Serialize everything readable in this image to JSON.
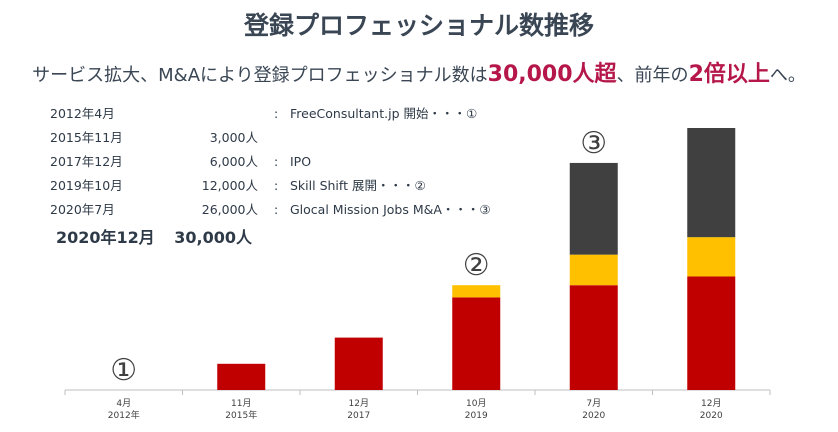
{
  "title": "登録プロフェッショナル数推移",
  "subtitle": {
    "part1": "サービス拡大、M&Aにより登録プロフェッショナル数は",
    "hl1": "30,000人超",
    "part2": "、前年の",
    "hl2": "2倍以上",
    "part3": "へ。"
  },
  "timeline": [
    {
      "date": "2012年4月",
      "count": "",
      "sep": ":",
      "desc": "FreeConsultant.jp  開始・・・①"
    },
    {
      "date": "2015年11月",
      "count": "3,000人",
      "sep": "",
      "desc": ""
    },
    {
      "date": "2017年12月",
      "count": "6,000人",
      "sep": ":",
      "desc": "IPO"
    },
    {
      "date": "2019年10月",
      "count": "12,000人",
      "sep": ":",
      "desc": "Skill Shift  展開・・・②"
    },
    {
      "date": "2020年7月",
      "count": "26,000人",
      "sep": ":",
      "desc": "Glocal Mission Jobs M&A・・・③"
    }
  ],
  "highlight": {
    "date": "2020年12月",
    "count": "30,000人"
  },
  "colors": {
    "red": "#c00000",
    "yellow": "#ffc000",
    "dark": "#404040",
    "accent": "#b5174a"
  },
  "chart_data": {
    "type": "bar",
    "stacked": true,
    "categories": [
      {
        "top": "4月",
        "bottom": "2012年"
      },
      {
        "top": "11月",
        "bottom": "2015年"
      },
      {
        "top": "12月",
        "bottom": "2017"
      },
      {
        "top": "10月",
        "bottom": "2019"
      },
      {
        "top": "7月",
        "bottom": "2020"
      },
      {
        "top": "12月",
        "bottom": "2020"
      }
    ],
    "series": [
      {
        "color": "#c00000",
        "values": [
          0,
          3000,
          6000,
          10600,
          12000,
          13000
        ]
      },
      {
        "color": "#ffc000",
        "values": [
          0,
          0,
          0,
          1400,
          3500,
          4500
        ]
      },
      {
        "color": "#404040",
        "values": [
          0,
          0,
          0,
          0,
          10500,
          12500
        ]
      }
    ],
    "markers": [
      {
        "index": 0,
        "label": "①"
      },
      {
        "index": 3,
        "label": "②"
      },
      {
        "index": 4,
        "label": "③"
      }
    ],
    "ylim": [
      0,
      30000
    ]
  }
}
